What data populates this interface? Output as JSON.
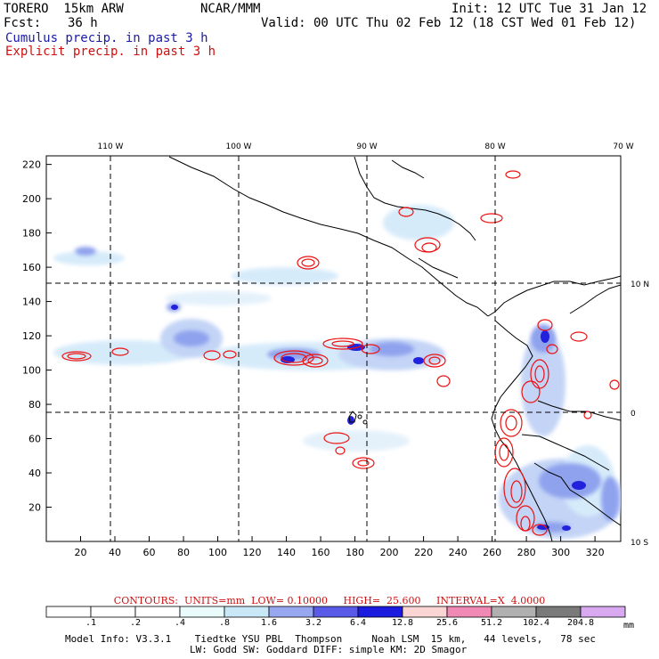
{
  "header": {
    "model": "TORERO  15km ARW",
    "org": "NCAR/MMM",
    "init": "Init: 12 UTC Tue 31 Jan 12",
    "fcst_label": "Fcst:",
    "fcst_value": "36 h",
    "valid": "Valid: 00 UTC Thu 02 Feb 12 (18 CST Wed 01 Feb 12)",
    "field_cumulus": "Cumulus precip. in past 3 h",
    "field_explicit": "Explicit precip. in past 3 h"
  },
  "axes": {
    "lon_labels": [
      "110 W",
      "100 W",
      "90 W",
      "80 W",
      "70 W"
    ],
    "lat_labels": [
      "10 N",
      "0",
      "10 S"
    ],
    "x_ticks": [
      "20",
      "40",
      "60",
      "80",
      "100",
      "120",
      "140",
      "160",
      "180",
      "200",
      "220",
      "240",
      "260",
      "280",
      "300",
      "320"
    ],
    "y_ticks": [
      "20",
      "40",
      "60",
      "80",
      "100",
      "120",
      "140",
      "160",
      "180",
      "200",
      "220"
    ]
  },
  "contour_info": {
    "text": "CONTOURS:  UNITS=mm  LOW= 0.10000     HIGH=  25.600     INTERVAL=X  4.0000"
  },
  "colorbar": {
    "labels": [
      ".1",
      ".2",
      ".4",
      ".8",
      "1.6",
      "3.2",
      "6.4",
      "12.8",
      "25.6",
      "51.2",
      "102.4",
      "204.8"
    ],
    "units": "mm",
    "colors": [
      "#ffffff",
      "#ffffff",
      "#ffffff",
      "#eafbfb",
      "#c8e8f8",
      "#98a8f0",
      "#5a5ae8",
      "#1c1ce0",
      "#fbd4d4",
      "#f08ab4",
      "#b0b0b0",
      "#7a7a7a",
      "#d8a8f0"
    ]
  },
  "footer": {
    "line1": "Model Info: V3.3.1    Tiedtke YSU PBL  Thompson     Noah LSM  15 km,   44 levels,   78 sec",
    "line2": "LW: Godd SW: Goddard DIFF: simple KM: 2D Smagor"
  },
  "colors": {
    "cumulus_light": "#d6ebfa",
    "cumulus_mid": "#8fa2ee",
    "cumulus_dark": "#2222dd",
    "explicit_contour": "#ee1111",
    "title_blue": "#1a1aa6",
    "title_red": "#d01010"
  }
}
